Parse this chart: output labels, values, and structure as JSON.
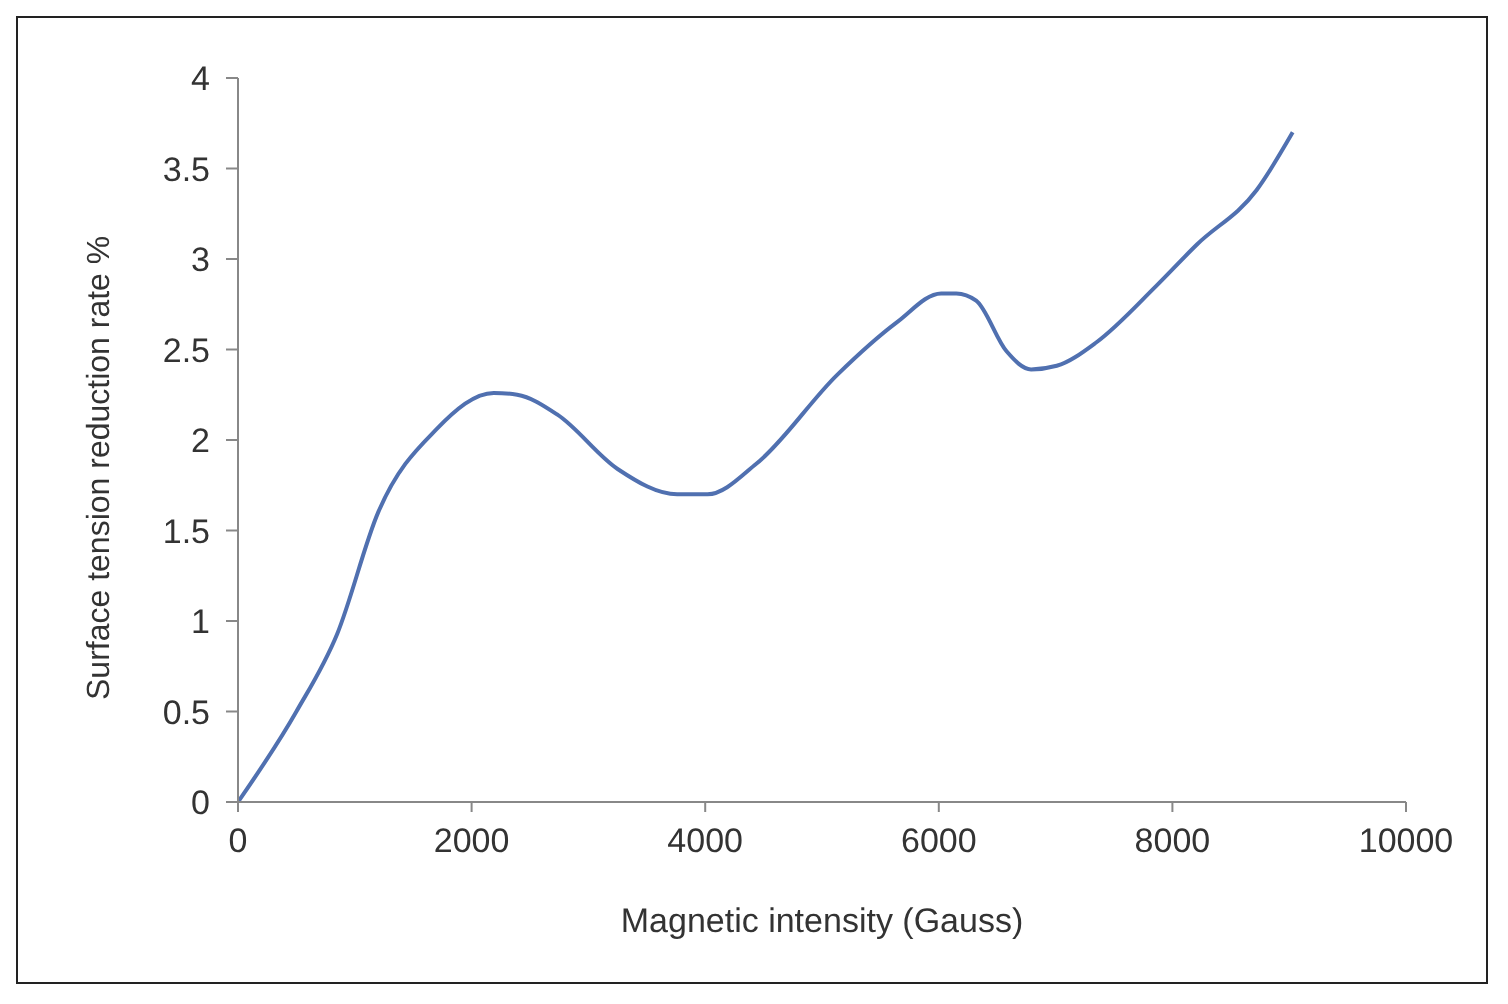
{
  "chart_data": {
    "type": "line",
    "xlabel": "Magnetic intensity (Gauss)",
    "ylabel": "Surface tension reduction rate %",
    "x": [
      0,
      500,
      850,
      1200,
      1700,
      2190,
      2390,
      2735,
      3250,
      3760,
      4020,
      4440,
      5130,
      5640,
      6020,
      6150,
      6320,
      6580,
      6790,
      7010,
      7350,
      7860,
      8210,
      8720,
      9030
    ],
    "series": [
      {
        "color": "#5070b0",
        "values": [
          0,
          0.5,
          0.93,
          1.6,
          2.06,
          2.26,
          2.25,
          2.14,
          1.84,
          1.7,
          1.7,
          1.87,
          2.36,
          2.65,
          2.81,
          2.81,
          2.77,
          2.49,
          2.39,
          2.41,
          2.54,
          2.85,
          3.08,
          3.38,
          3.7
        ]
      }
    ],
    "xlim": [
      0,
      10000
    ],
    "xticks": [
      0,
      2000,
      4000,
      6000,
      8000,
      10000
    ],
    "ylim": [
      0,
      4
    ],
    "yticks": [
      0,
      0.5,
      1,
      1.5,
      2,
      2.5,
      3,
      3.5,
      4
    ],
    "grid": false,
    "legend": false,
    "marker": "none",
    "line_style": "solid"
  }
}
